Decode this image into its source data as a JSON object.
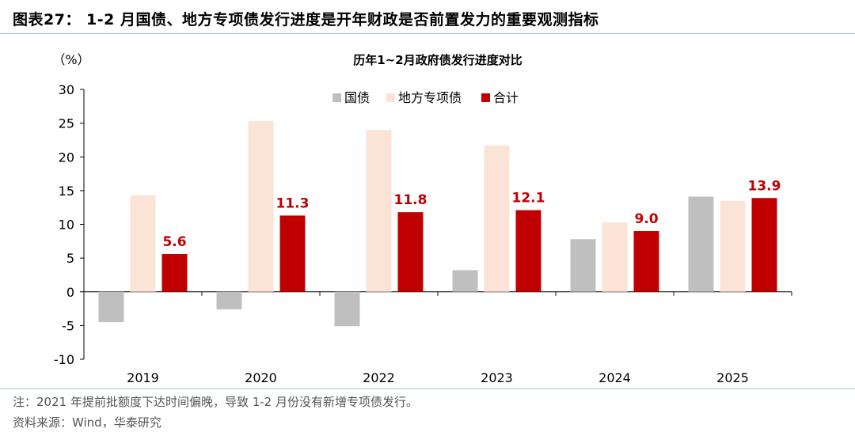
{
  "figure_title": "图表27： 1-2 月国债、地方专项债发行进度是开年财政是否前置发力的重要观测指标",
  "note": "注：2021 年提前批额度下达时间偏晚，导致 1-2 月份没有新增专项债发行。",
  "source": "资料来源：Wind，华泰研究",
  "chart_data": {
    "type": "bar",
    "title": "历年1~2月政府债发行进度对比",
    "ylabel": "（%）",
    "xlabel": "",
    "ylim": [
      -10,
      30
    ],
    "yticks": [
      30,
      25,
      20,
      15,
      10,
      5,
      0,
      -5,
      -10
    ],
    "grid": false,
    "legend_position": "top-center",
    "categories": [
      "2019",
      "2020",
      "2022",
      "2023",
      "2024",
      "2025"
    ],
    "series": [
      {
        "name": "国债",
        "color": "#bfbfbf",
        "values": [
          -4.5,
          -2.6,
          -5.1,
          3.2,
          7.8,
          14.1
        ],
        "show_labels": false
      },
      {
        "name": "地方专项债",
        "color": "#fbe3d6",
        "values": [
          14.3,
          25.3,
          24.0,
          21.7,
          10.3,
          13.5
        ],
        "show_labels": false
      },
      {
        "name": "合计",
        "color": "#c00000",
        "values": [
          5.6,
          11.3,
          11.8,
          12.1,
          9.0,
          13.9
        ],
        "show_labels": true,
        "labels": [
          "5.6",
          "11.3",
          "11.8",
          "12.1",
          "9.0",
          "13.9"
        ],
        "label_color": "#c00000"
      }
    ]
  }
}
